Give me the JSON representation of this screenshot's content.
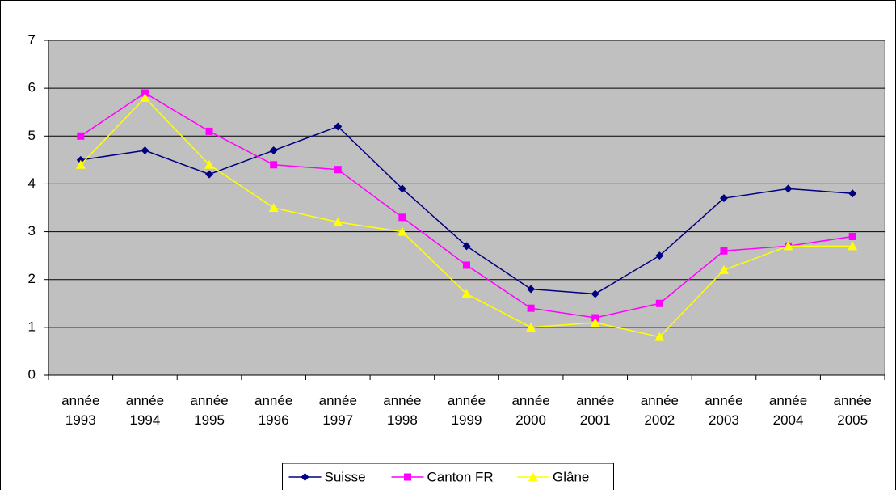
{
  "chart_data": {
    "type": "line",
    "categories": [
      "année 1993",
      "année 1994",
      "année 1995",
      "année 1996",
      "année 1997",
      "année 1998",
      "année 1999",
      "année 2000",
      "année 2001",
      "année 2002",
      "année 2003",
      "année 2004",
      "année 2005"
    ],
    "series": [
      {
        "name": "Suisse",
        "color": "#000080",
        "marker": "diamond",
        "values": [
          4.5,
          4.7,
          4.2,
          4.7,
          5.2,
          3.9,
          2.7,
          1.8,
          1.7,
          2.5,
          3.7,
          3.9,
          3.8
        ]
      },
      {
        "name": "Canton FR",
        "color": "#ff00ff",
        "marker": "square",
        "values": [
          5.0,
          5.9,
          5.1,
          4.4,
          4.3,
          3.3,
          2.3,
          1.4,
          1.2,
          1.5,
          2.6,
          2.7,
          2.9
        ]
      },
      {
        "name": "Glâne",
        "color": "#ffff00",
        "marker": "triangle",
        "values": [
          4.4,
          5.8,
          4.4,
          3.5,
          3.2,
          3.0,
          1.7,
          1.0,
          1.1,
          0.8,
          2.2,
          2.7,
          2.7
        ]
      }
    ],
    "ylim": [
      0,
      7
    ],
    "yticks": [
      0,
      1,
      2,
      3,
      4,
      5,
      6,
      7
    ],
    "grid": true,
    "legend": "bottom"
  }
}
